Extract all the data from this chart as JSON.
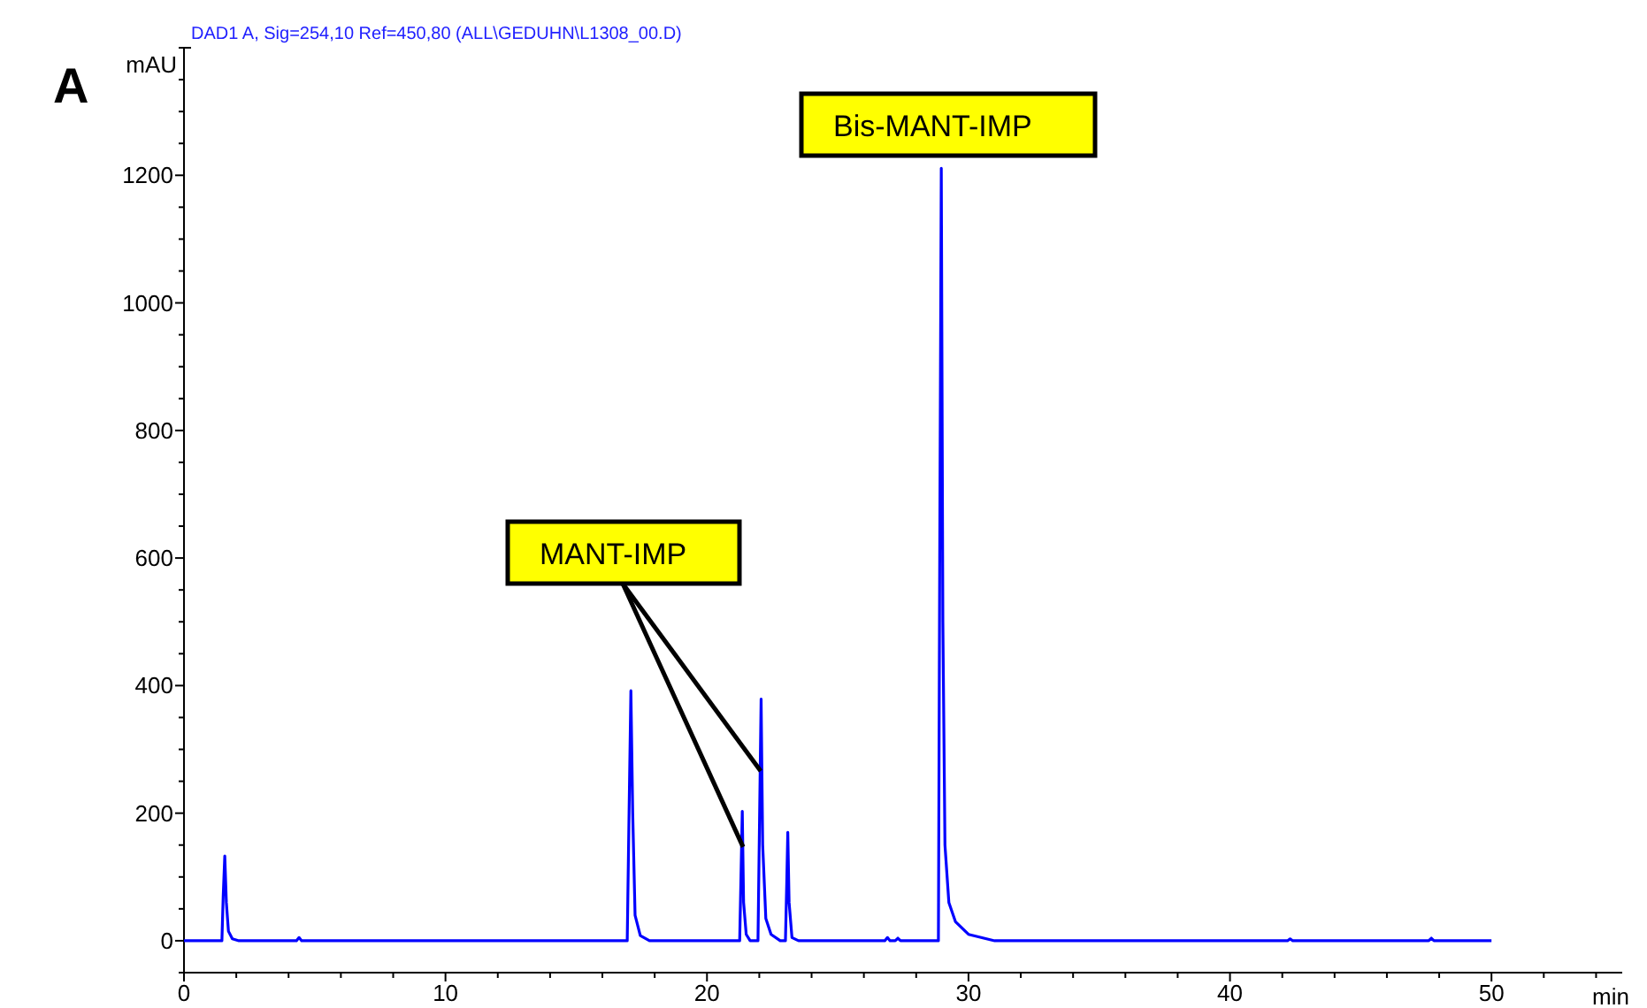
{
  "chart_data": {
    "type": "line",
    "title": "A",
    "subtitle": "DAD1 A, Sig=254,10 Ref=450,80 (ALL\\GEDUHN\\L1308_00.D)",
    "xlabel": "min",
    "ylabel": "mAU",
    "xlim": [
      0,
      55
    ],
    "ylim": [
      -50,
      1400
    ],
    "xticks": [
      0,
      {
        "value": 2,
        "label": null
      },
      {
        "value": 4,
        "label": null
      },
      {
        "value": 6,
        "label": null
      },
      {
        "value": 8,
        "label": null
      },
      10,
      {
        "value": 12,
        "label": null
      },
      {
        "value": 14,
        "label": null
      },
      {
        "value": 16,
        "label": null
      },
      {
        "value": 18,
        "label": null
      },
      20,
      {
        "value": 22,
        "label": null
      },
      {
        "value": 24,
        "label": null
      },
      {
        "value": 26,
        "label": null
      },
      {
        "value": 28,
        "label": null
      },
      30,
      {
        "value": 32,
        "label": null
      },
      {
        "value": 34,
        "label": null
      },
      {
        "value": 36,
        "label": null
      },
      {
        "value": 38,
        "label": null
      },
      40,
      {
        "value": 42,
        "label": null
      },
      {
        "value": 44,
        "label": null
      },
      {
        "value": 46,
        "label": null
      },
      {
        "value": 48,
        "label": null
      },
      50,
      {
        "value": 52,
        "label": null
      },
      {
        "value": 54,
        "label": null
      }
    ],
    "yticks": [
      {
        "value": -50,
        "label": null
      },
      0,
      {
        "value": 50,
        "label": null
      },
      {
        "value": 100,
        "label": null
      },
      {
        "value": 150,
        "label": null
      },
      200,
      {
        "value": 250,
        "label": null
      },
      {
        "value": 300,
        "label": null
      },
      {
        "value": 350,
        "label": null
      },
      400,
      {
        "value": 450,
        "label": null
      },
      {
        "value": 500,
        "label": null
      },
      {
        "value": 550,
        "label": null
      },
      600,
      {
        "value": 650,
        "label": null
      },
      {
        "value": 700,
        "label": null
      },
      {
        "value": 750,
        "label": null
      },
      800,
      {
        "value": 850,
        "label": null
      },
      {
        "value": 900,
        "label": null
      },
      {
        "value": 950,
        "label": null
      },
      1000,
      {
        "value": 1050,
        "label": null
      },
      {
        "value": 1100,
        "label": null
      },
      {
        "value": 1150,
        "label": null
      },
      1200,
      {
        "value": 1250,
        "label": null
      },
      {
        "value": 1300,
        "label": null
      },
      {
        "value": 1350,
        "label": null
      },
      {
        "value": 1400,
        "label": null
      }
    ],
    "grid": false,
    "marker": "none",
    "line_style": "solid",
    "annotations": [
      {
        "text": "MANT-IMP",
        "x": 21.38,
        "y": 147
      },
      "Bis-MANT-IMP"
    ],
    "series": [
      {
        "color": "#0000ff",
        "x": [
          0,
          1.45,
          1.5,
          1.56,
          1.62,
          1.7,
          1.85,
          2.1,
          4.3,
          4.4,
          4.5,
          16.95,
          17.02,
          17.09,
          17.16,
          17.25,
          17.45,
          17.8,
          21.25,
          21.3,
          21.35,
          21.4,
          21.5,
          21.65,
          21.95,
          22.01,
          22.07,
          22.13,
          22.25,
          22.45,
          22.8,
          23.0,
          23.05,
          23.09,
          23.14,
          23.25,
          23.5,
          26.8,
          26.9,
          27.0,
          27.2,
          27.3,
          27.4,
          28.85,
          28.9,
          28.96,
          29.02,
          29.1,
          29.25,
          29.5,
          30,
          31,
          42.2,
          42.3,
          42.4,
          47.6,
          47.7,
          47.8,
          50
        ],
        "values": [
          0,
          0,
          70,
          133,
          60,
          15,
          3,
          0,
          0,
          5,
          0,
          0,
          200,
          392,
          200,
          40,
          8,
          0,
          0,
          100,
          203,
          60,
          10,
          0,
          0,
          190,
          379,
          150,
          35,
          10,
          0,
          0,
          90,
          170,
          60,
          5,
          0,
          0,
          5,
          0,
          0,
          4,
          0,
          0,
          600,
          1211,
          500,
          150,
          60,
          30,
          10,
          0,
          0,
          3,
          0,
          0,
          4,
          0,
          0
        ]
      }
    ]
  }
}
